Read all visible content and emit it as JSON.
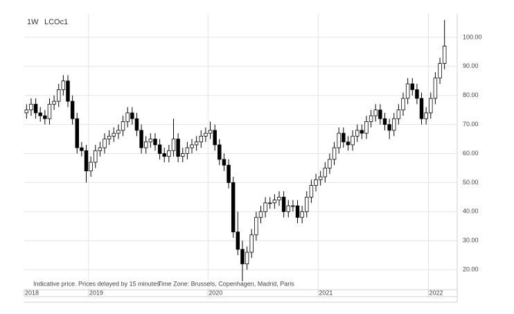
{
  "chart_data": {
    "type": "candlestick",
    "interval": "1W",
    "symbol": "LCOc1",
    "note": "Indicative price. Prices delayed by 15 minutes",
    "timezone": "Time Zone: Brussels, Copenhagen, Madrid, Paris",
    "categories": [
      "2018",
      null,
      null,
      null,
      null,
      null,
      null,
      null,
      null,
      null,
      null,
      null,
      null,
      null,
      "2019",
      null,
      null,
      null,
      null,
      null,
      null,
      null,
      null,
      null,
      null,
      null,
      null,
      null,
      null,
      null,
      null,
      null,
      null,
      null,
      null,
      null,
      null,
      null,
      null,
      null,
      "2020",
      null,
      null,
      null,
      null,
      null,
      null,
      null,
      null,
      null,
      null,
      null,
      null,
      null,
      null,
      null,
      null,
      null,
      null,
      null,
      null,
      null,
      null,
      null,
      "2021",
      null,
      null,
      null,
      null,
      null,
      null,
      null,
      null,
      null,
      null,
      null,
      null,
      null,
      null,
      null,
      null,
      null,
      null,
      null,
      null,
      null,
      null,
      null,
      "2022",
      null,
      null,
      null
    ],
    "open": [
      74,
      75,
      77,
      74,
      73,
      72,
      77,
      78,
      82,
      85,
      78,
      72,
      62,
      61,
      54,
      57,
      61,
      62,
      65,
      66,
      67,
      68,
      71,
      74,
      72,
      68,
      62,
      64,
      65,
      63,
      60,
      59,
      61,
      65,
      59,
      60,
      62,
      63,
      64,
      66,
      67,
      68,
      63,
      58,
      56,
      50,
      33,
      27,
      22,
      26,
      32,
      38,
      40,
      43,
      43,
      44,
      45,
      40,
      42,
      42,
      38,
      40,
      45,
      49,
      51,
      52,
      55,
      58,
      62,
      67,
      64,
      63,
      66,
      68,
      67,
      71,
      73,
      75,
      72,
      70,
      68,
      72,
      75,
      79,
      84,
      82,
      79,
      72,
      74,
      79,
      86,
      91
    ],
    "high": [
      77,
      79,
      79,
      76,
      75,
      79,
      80,
      84,
      87,
      87,
      80,
      74,
      64,
      63,
      59,
      63,
      64,
      67,
      68,
      69,
      70,
      73,
      76,
      76,
      74,
      70,
      66,
      67,
      67,
      65,
      62,
      63,
      72,
      67,
      62,
      64,
      65,
      66,
      68,
      69,
      71,
      70,
      65,
      60,
      58,
      52,
      40,
      30,
      28,
      34,
      40,
      42,
      45,
      45,
      46,
      47,
      47,
      44,
      44,
      44,
      42,
      47,
      51,
      53,
      54,
      57,
      60,
      64,
      69,
      69,
      66,
      68,
      70,
      70,
      73,
      75,
      77,
      77,
      74,
      72,
      74,
      77,
      81,
      86,
      86,
      84,
      81,
      76,
      81,
      88,
      93,
      106
    ],
    "low": [
      72,
      73,
      72,
      71,
      70,
      70,
      75,
      76,
      80,
      76,
      70,
      60,
      59,
      50,
      52,
      55,
      59,
      60,
      63,
      64,
      65,
      66,
      69,
      70,
      66,
      60,
      60,
      62,
      61,
      58,
      57,
      57,
      59,
      57,
      57,
      58,
      60,
      61,
      62,
      64,
      65,
      61,
      56,
      54,
      48,
      31,
      25,
      16,
      20,
      24,
      30,
      36,
      38,
      41,
      41,
      42,
      38,
      38,
      40,
      36,
      36,
      38,
      43,
      47,
      49,
      50,
      53,
      56,
      60,
      62,
      61,
      61,
      64,
      65,
      65,
      69,
      71,
      70,
      68,
      65,
      66,
      70,
      73,
      77,
      80,
      77,
      70,
      70,
      72,
      77,
      84,
      89
    ],
    "close": [
      75,
      77,
      74,
      73,
      72,
      77,
      78,
      82,
      85,
      78,
      72,
      62,
      61,
      54,
      57,
      61,
      62,
      65,
      66,
      67,
      68,
      71,
      74,
      72,
      68,
      62,
      64,
      65,
      63,
      60,
      59,
      61,
      65,
      59,
      60,
      62,
      63,
      64,
      66,
      67,
      68,
      63,
      58,
      56,
      50,
      33,
      27,
      22,
      26,
      32,
      38,
      40,
      43,
      43,
      44,
      45,
      40,
      42,
      42,
      38,
      40,
      45,
      49,
      51,
      52,
      55,
      58,
      62,
      67,
      64,
      63,
      66,
      68,
      67,
      71,
      73,
      75,
      72,
      70,
      68,
      72,
      75,
      79,
      84,
      82,
      79,
      72,
      74,
      79,
      86,
      91,
      97
    ],
    "up_color": "#ffffff",
    "down_color": "#000000",
    "ylim": [
      13.1,
      108.1
    ],
    "yticks": [
      {
        "value": 20,
        "label": "20.00"
      },
      {
        "value": 30,
        "label": "30.00"
      },
      {
        "value": 40,
        "label": "40.00"
      },
      {
        "value": 50,
        "label": "50.00"
      },
      {
        "value": 60,
        "label": "60.00"
      },
      {
        "value": 70,
        "label": "70.00"
      },
      {
        "value": 80,
        "label": "80.00"
      },
      {
        "value": 90,
        "label": "90.00"
      },
      {
        "value": 100,
        "label": "100.00"
      }
    ],
    "grid": true
  }
}
